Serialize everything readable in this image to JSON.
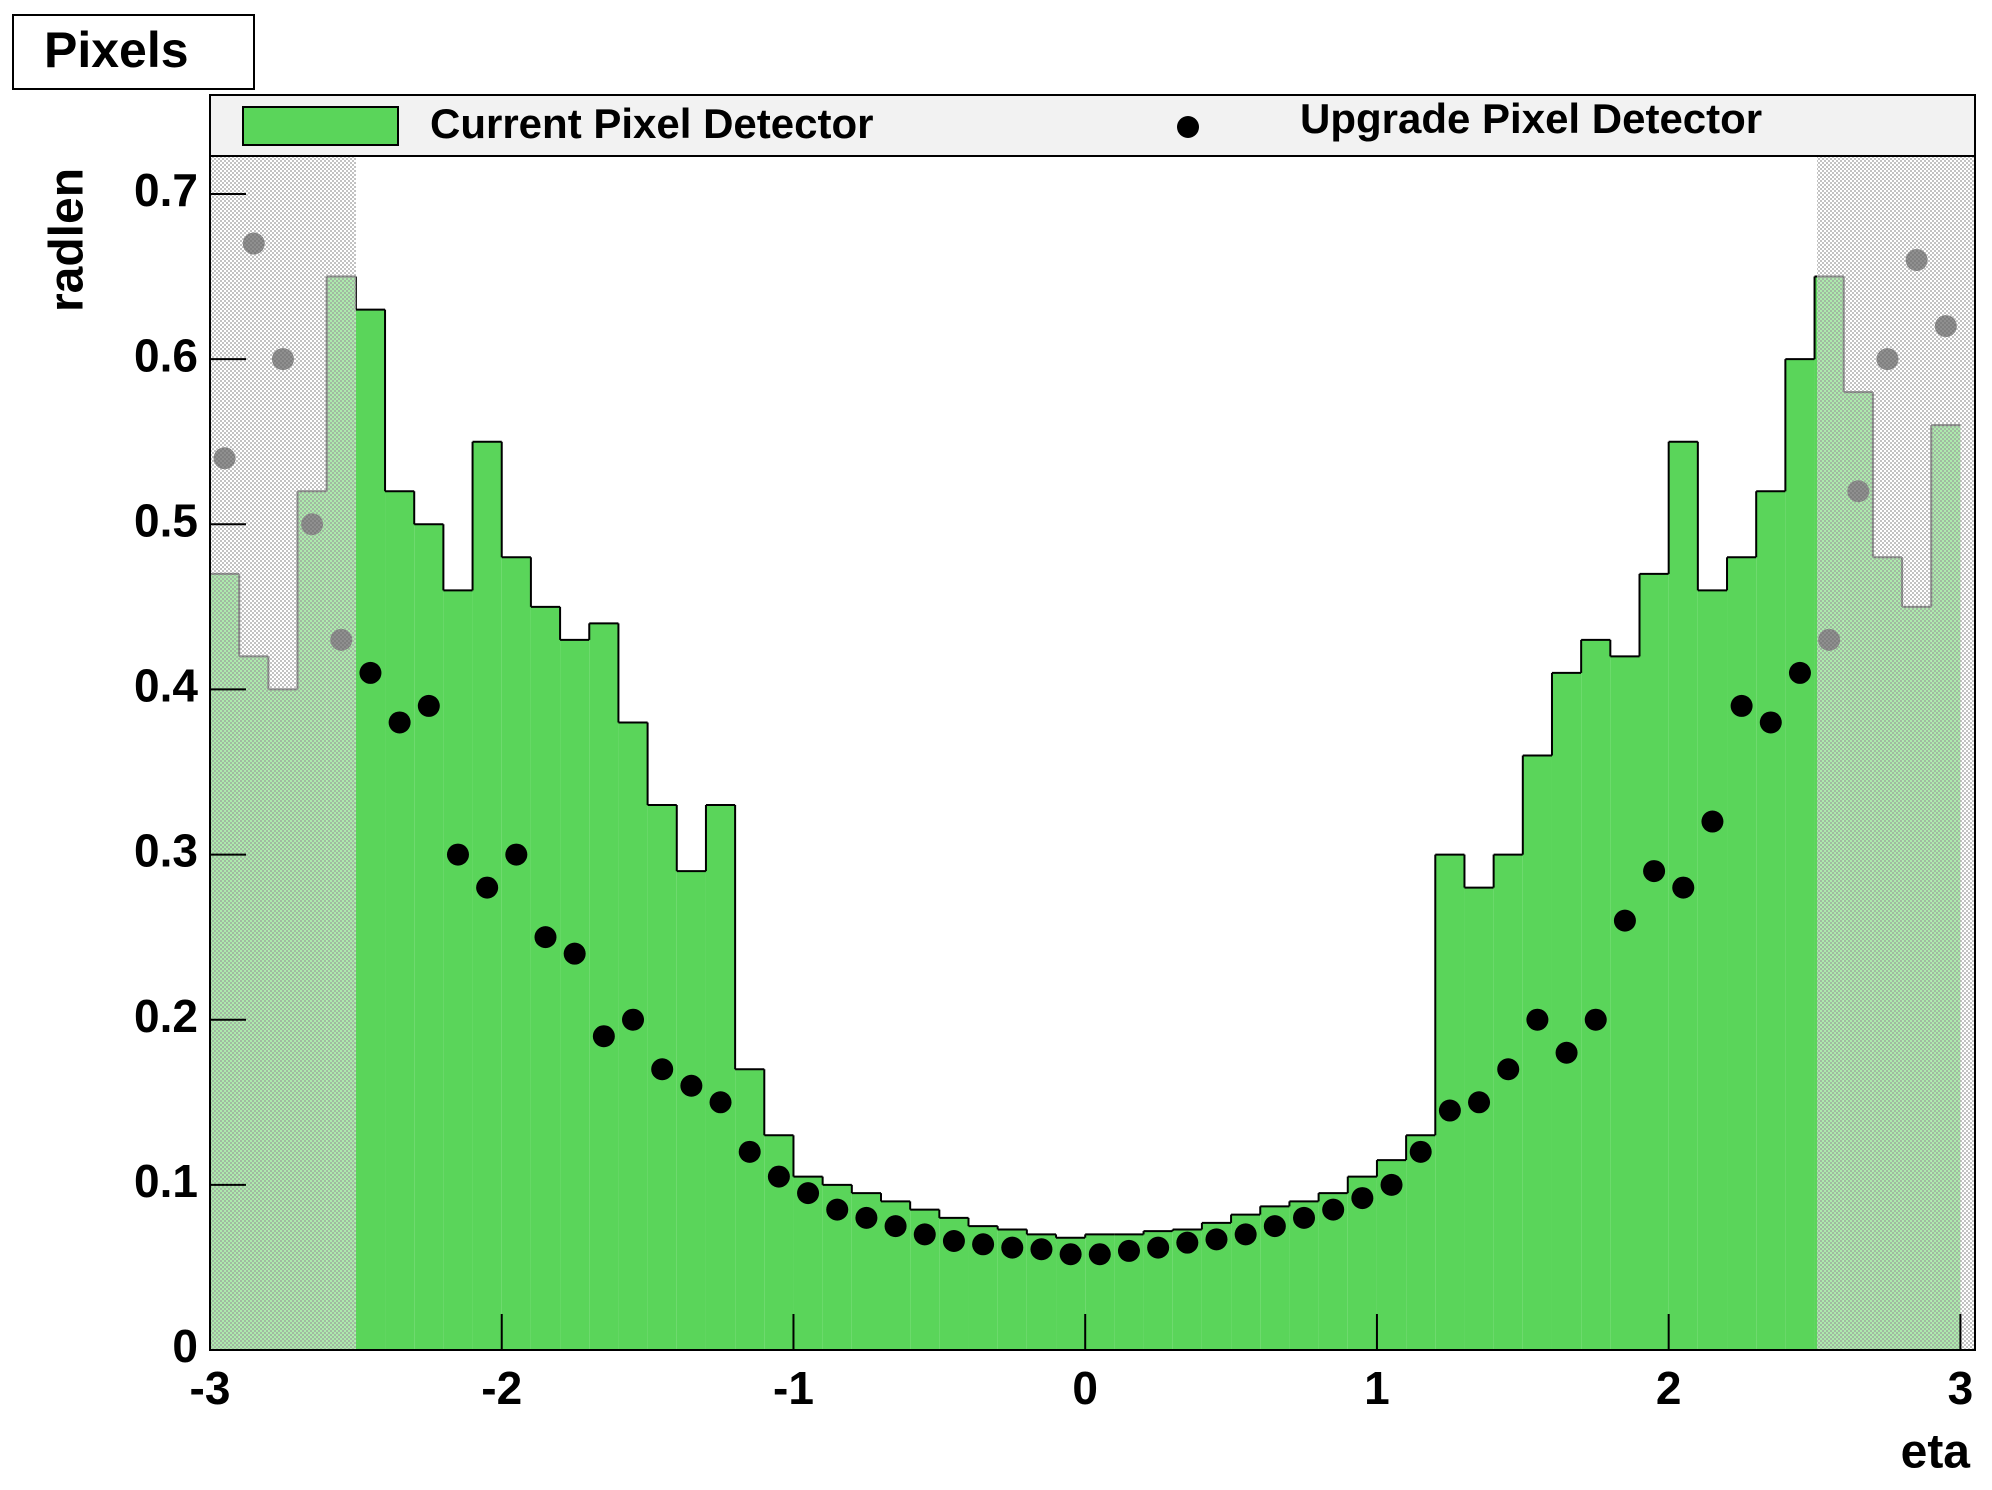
{
  "chart_data": {
    "type": "histogram",
    "title": "Pixels",
    "x_label": "eta",
    "y_label": "radlen",
    "bins": [
      -3.0,
      -2.9,
      -2.8,
      -2.7,
      -2.6,
      -2.5,
      -2.4,
      -2.3,
      -2.2,
      -2.1,
      -2.0,
      -1.9,
      -1.8,
      -1.7,
      -1.6,
      -1.5,
      -1.4,
      -1.3,
      -1.2,
      -1.1,
      -1.0,
      -0.9,
      -0.8,
      -0.7,
      -0.6,
      -0.5,
      -0.4,
      -0.3,
      -0.2,
      -0.1,
      0.0,
      0.1,
      0.2,
      0.3,
      0.4,
      0.5,
      0.6,
      0.7,
      0.8,
      0.9,
      1.0,
      1.1,
      1.2,
      1.3,
      1.4,
      1.5,
      1.6,
      1.7,
      1.8,
      1.9,
      2.0,
      2.1,
      2.2,
      2.3,
      2.4,
      2.5,
      2.6,
      2.7,
      2.8,
      2.9,
      3.0
    ],
    "series": [
      {
        "name": "Current Pixel Detector",
        "type": "histogram",
        "color": "#5ad55a",
        "values": [
          0.47,
          0.42,
          0.4,
          0.52,
          0.65,
          0.63,
          0.52,
          0.5,
          0.46,
          0.55,
          0.48,
          0.45,
          0.43,
          0.44,
          0.38,
          0.33,
          0.29,
          0.33,
          0.17,
          0.13,
          0.105,
          0.1,
          0.095,
          0.09,
          0.085,
          0.08,
          0.075,
          0.073,
          0.07,
          0.068,
          0.07,
          0.07,
          0.072,
          0.073,
          0.077,
          0.082,
          0.087,
          0.09,
          0.095,
          0.105,
          0.115,
          0.13,
          0.3,
          0.28,
          0.3,
          0.36,
          0.41,
          0.43,
          0.42,
          0.47,
          0.55,
          0.46,
          0.48,
          0.52,
          0.6,
          0.65,
          0.58,
          0.48,
          0.45,
          0.56
        ]
      },
      {
        "name": "Upgrade Pixel Detector",
        "type": "scatter",
        "color": "#000000",
        "x": [
          -2.95,
          -2.85,
          -2.75,
          -2.65,
          -2.55,
          -2.45,
          -2.35,
          -2.25,
          -2.15,
          -2.05,
          -1.95,
          -1.85,
          -1.75,
          -1.65,
          -1.55,
          -1.45,
          -1.35,
          -1.25,
          -1.15,
          -1.05,
          -0.95,
          -0.85,
          -0.75,
          -0.65,
          -0.55,
          -0.45,
          -0.35,
          -0.25,
          -0.15,
          -0.05,
          0.05,
          0.15,
          0.25,
          0.35,
          0.45,
          0.55,
          0.65,
          0.75,
          0.85,
          0.95,
          1.05,
          1.15,
          1.25,
          1.35,
          1.45,
          1.55,
          1.65,
          1.75,
          1.85,
          1.95,
          2.05,
          2.15,
          2.25,
          2.35,
          2.45,
          2.55,
          2.65,
          2.75,
          2.85,
          2.95
        ],
        "values": [
          0.54,
          0.67,
          0.6,
          0.5,
          0.43,
          0.41,
          0.38,
          0.39,
          0.3,
          0.28,
          0.3,
          0.25,
          0.24,
          0.19,
          0.2,
          0.17,
          0.16,
          0.15,
          0.12,
          0.105,
          0.095,
          0.085,
          0.08,
          0.075,
          0.07,
          0.066,
          0.064,
          0.062,
          0.061,
          0.058,
          0.058,
          0.06,
          0.062,
          0.065,
          0.067,
          0.07,
          0.075,
          0.08,
          0.085,
          0.092,
          0.1,
          0.12,
          0.145,
          0.15,
          0.17,
          0.2,
          0.18,
          0.2,
          0.26,
          0.29,
          0.28,
          0.32,
          0.39,
          0.38,
          0.41,
          0.43,
          0.52,
          0.6,
          0.66,
          0.62
        ]
      }
    ],
    "xlim": [
      -3,
      3.05
    ],
    "ylim": [
      0,
      0.723
    ],
    "xticks": [
      -3,
      -2,
      -1,
      0,
      1,
      2,
      3
    ],
    "yticks": [
      0,
      0.1,
      0.2,
      0.3,
      0.4,
      0.5,
      0.6,
      0.7
    ]
  }
}
